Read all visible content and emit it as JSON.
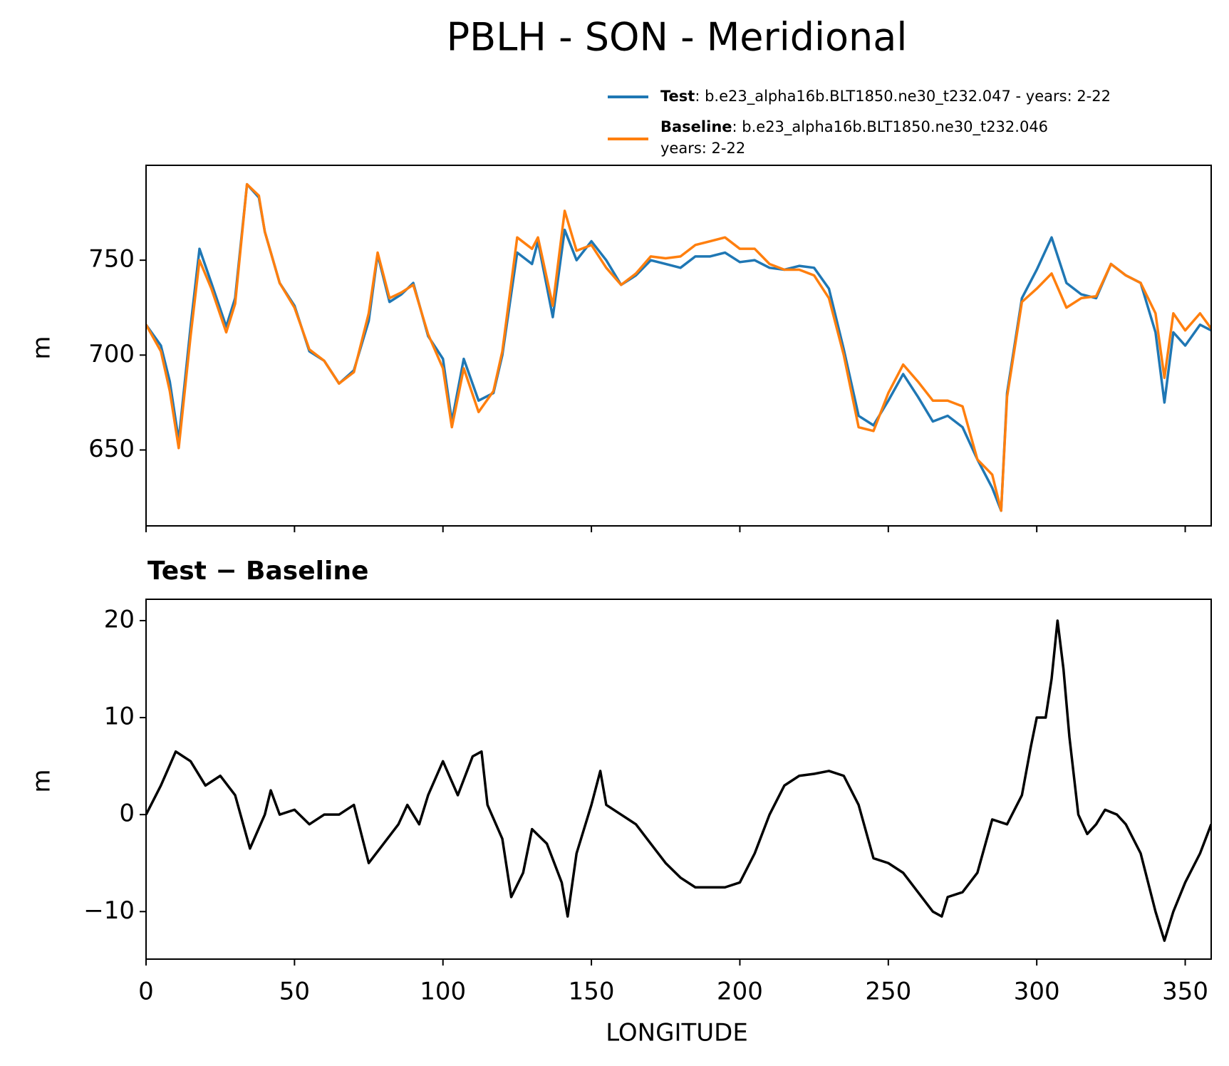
{
  "chart_data": [
    {
      "type": "line",
      "title": "PBLH - SON - Meridional",
      "ylabel": "m",
      "x": [
        0,
        5,
        8,
        11,
        15,
        18,
        22,
        27,
        30,
        34,
        38,
        40,
        45,
        50,
        55,
        60,
        65,
        70,
        75,
        78,
        82,
        86,
        90,
        95,
        100,
        103,
        107,
        112,
        117,
        120,
        125,
        130,
        132,
        137,
        141,
        145,
        150,
        155,
        160,
        165,
        170,
        175,
        180,
        185,
        190,
        195,
        200,
        205,
        210,
        215,
        220,
        225,
        230,
        235,
        240,
        245,
        250,
        255,
        260,
        265,
        270,
        275,
        280,
        285,
        288,
        290,
        295,
        300,
        305,
        310,
        315,
        320,
        325,
        330,
        335,
        340,
        343,
        346,
        350,
        355,
        358.75
      ],
      "series": [
        {
          "name": "Test",
          "description": [
            ": b.e23_alpha16b.BLT1850.ne30_t232.047 - years: 2-22"
          ],
          "color": "#1f77b4",
          "values": [
            716,
            705,
            686,
            655,
            715,
            756,
            738,
            715,
            730,
            790,
            783,
            765,
            738,
            726,
            702,
            697,
            685,
            692,
            718,
            753,
            728,
            732,
            738,
            710,
            698,
            665,
            698,
            676,
            680,
            700,
            754,
            748,
            760,
            720,
            766,
            750,
            760,
            750,
            737,
            742,
            750,
            748,
            746,
            752,
            752,
            754,
            749,
            750,
            746,
            745,
            747,
            746,
            735,
            703,
            668,
            663,
            676,
            690,
            678,
            665,
            668,
            662,
            645,
            630,
            618,
            680,
            730,
            745,
            762,
            738,
            732,
            730,
            748,
            742,
            738,
            712,
            675,
            712,
            705,
            716,
            713
          ]
        },
        {
          "name": "Baseline",
          "description": [
            ": b.e23_alpha16b.BLT1850.ne30_t232.046",
            "years: 2-22"
          ],
          "color": "#ff7f0e",
          "values": [
            716,
            702,
            681,
            651,
            710,
            750,
            735,
            712,
            727,
            790,
            784,
            765,
            738,
            725,
            703,
            697,
            685,
            691,
            722,
            754,
            730,
            733,
            737,
            711,
            693,
            662,
            693,
            670,
            681,
            702,
            762,
            756,
            762,
            726,
            776,
            755,
            758,
            746,
            737,
            743,
            752,
            751,
            752,
            758,
            760,
            762,
            756,
            756,
            748,
            745,
            745,
            742,
            730,
            700,
            662,
            660,
            680,
            695,
            686,
            676,
            676,
            673,
            645,
            637,
            618,
            678,
            728,
            735,
            743,
            725,
            730,
            731,
            748,
            742,
            738,
            722,
            688,
            722,
            713,
            722,
            714
          ]
        }
      ],
      "xlim": [
        0,
        358.75
      ],
      "ylim": [
        610,
        800
      ],
      "xticks": [
        0,
        50,
        100,
        150,
        200,
        250,
        300,
        350
      ],
      "yticks": [
        650,
        700,
        750
      ]
    },
    {
      "type": "line",
      "title": "Test − Baseline",
      "ylabel": "m",
      "xlabel": "LONGITUDE",
      "color": "#000000",
      "x": [
        0,
        5,
        10,
        15,
        20,
        25,
        30,
        35,
        40,
        42,
        45,
        50,
        55,
        60,
        65,
        70,
        75,
        80,
        85,
        88,
        92,
        95,
        100,
        105,
        110,
        113,
        115,
        120,
        123,
        127,
        130,
        135,
        140,
        142,
        145,
        150,
        153,
        155,
        160,
        165,
        170,
        175,
        180,
        185,
        190,
        195,
        200,
        205,
        210,
        215,
        220,
        225,
        230,
        235,
        240,
        245,
        250,
        255,
        260,
        265,
        268,
        270,
        275,
        280,
        285,
        290,
        295,
        298,
        300,
        303,
        305,
        307,
        309,
        311,
        314,
        317,
        320,
        323,
        327,
        330,
        335,
        340,
        343,
        346,
        350,
        355,
        358.75
      ],
      "values": [
        0,
        3,
        6.5,
        5.5,
        3,
        4,
        2,
        -3.5,
        0,
        2.5,
        0,
        0.5,
        -1,
        0,
        0,
        1,
        -5,
        -3,
        -1,
        1,
        -1,
        2,
        5.5,
        2,
        6,
        6.5,
        1,
        -2.5,
        -8.5,
        -6,
        -1.5,
        -3,
        -7,
        -10.5,
        -4,
        1,
        4.5,
        1,
        0,
        -1,
        -3,
        -5,
        -6.5,
        -7.5,
        -7.5,
        -7.5,
        -7,
        -4,
        0,
        3,
        4,
        4.2,
        4.5,
        4,
        1,
        -4.5,
        -5,
        -6,
        -8,
        -10,
        -10.5,
        -8.5,
        -8,
        -6,
        -0.5,
        -1,
        2,
        7,
        10,
        10,
        14,
        20,
        15,
        8,
        0,
        -2,
        -1,
        0.5,
        0,
        -1,
        -4,
        -10,
        -13,
        -10,
        -7,
        -4,
        -1
      ],
      "xlim": [
        0,
        358.75
      ],
      "ylim": [
        -14.9,
        22.2
      ],
      "xticks": [
        0,
        50,
        100,
        150,
        200,
        250,
        300,
        350
      ],
      "yticks": [
        {
          "value": -10,
          "label": "−10"
        },
        0,
        10,
        20
      ]
    }
  ]
}
